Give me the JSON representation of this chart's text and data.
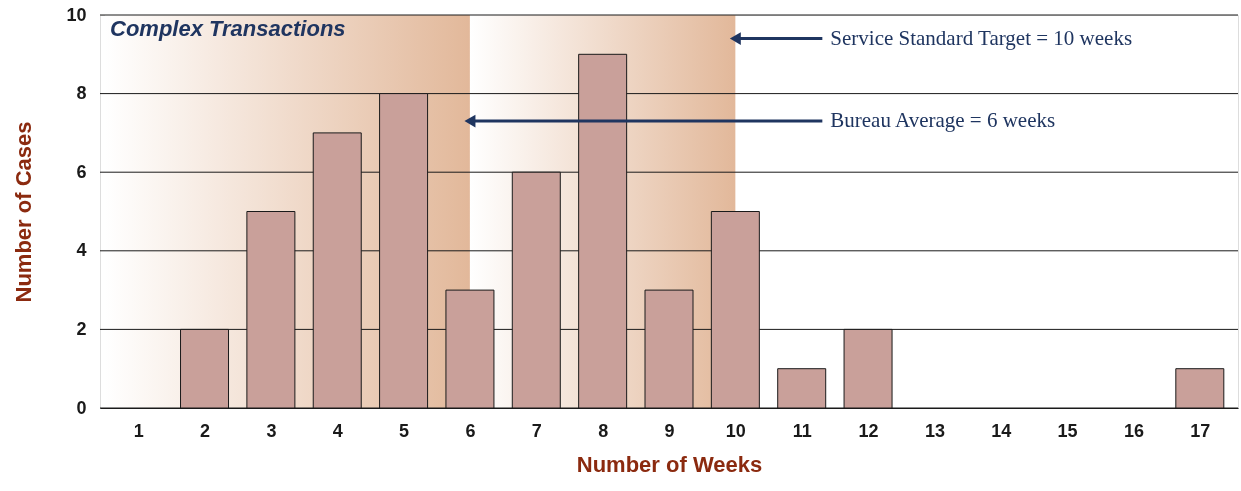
{
  "chart_data": {
    "type": "bar",
    "title": "Complex Transactions",
    "xlabel": "Number of Weeks",
    "ylabel": "Number of Cases",
    "x": [
      1,
      2,
      3,
      4,
      5,
      6,
      7,
      8,
      9,
      10,
      11,
      12,
      13,
      14,
      15,
      16,
      17
    ],
    "values": [
      0,
      2,
      5,
      7,
      8,
      3,
      6,
      9,
      3,
      5,
      1,
      2,
      0,
      0,
      0,
      0,
      1
    ],
    "color": "#c9a09a",
    "xlim": [
      0.5,
      17.5
    ],
    "xticks": [
      1,
      2,
      3,
      4,
      5,
      6,
      7,
      8,
      9,
      10,
      11,
      12,
      13,
      14,
      15,
      16,
      17
    ],
    "ylim": [
      0,
      10
    ],
    "yticks": [
      0,
      2,
      4,
      6,
      8,
      10
    ],
    "grid": "y",
    "bands": [
      {
        "axis": "x",
        "from": 0.5,
        "to": 6,
        "color": "#e2b89a"
      },
      {
        "axis": "x",
        "from": 6,
        "to": 10,
        "color": "#e2b89a"
      }
    ],
    "annotations": [
      {
        "text": "Service Standard Target = 10 weeks",
        "x": 10,
        "y": 9.4
      },
      {
        "text": "Bureau Average = 6 weeks",
        "x": 6,
        "y": 7.3
      }
    ]
  }
}
